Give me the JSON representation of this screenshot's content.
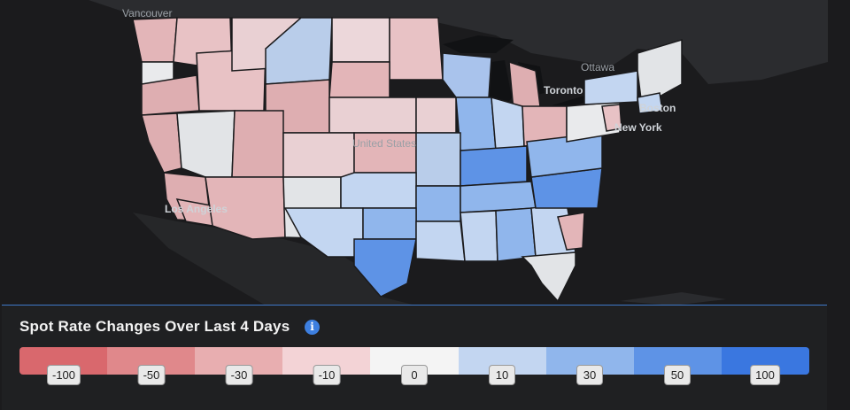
{
  "map": {
    "cities": [
      "Vancouver",
      "Ottawa",
      "Toronto",
      "Boston",
      "New York",
      "United States",
      "Los Angeles"
    ],
    "background": "#1b1b1d",
    "land_color": "#2b2c2f",
    "water_color": "#111214"
  },
  "legend": {
    "title": "Spot Rate Changes Over Last 4 Days",
    "info_icon": "info-icon",
    "labels": [
      "-100",
      "-50",
      "-30",
      "-10",
      "0",
      "10",
      "30",
      "50",
      "100"
    ],
    "colors": [
      "#d9686d",
      "#e0888b",
      "#e8aeb0",
      "#f3d3d6",
      "#f4f4f4",
      "#c3d6f1",
      "#90b6ec",
      "#5e93e6",
      "#3a77e0"
    ]
  }
}
